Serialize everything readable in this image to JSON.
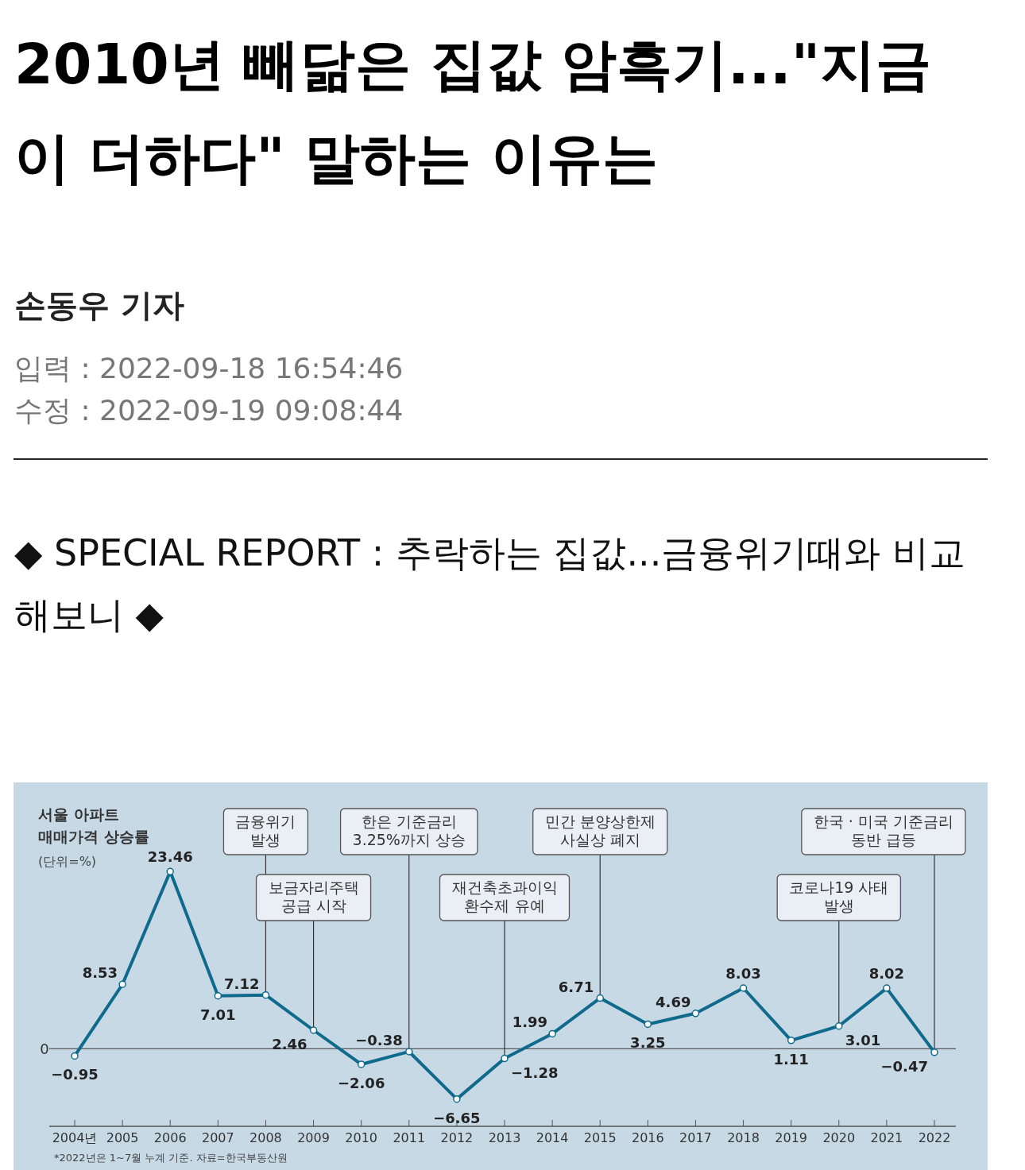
{
  "chart_data": {
    "type": "line",
    "title": "2010년 빼닮은 집값 암흑기...\"지금이 더하다\" 말하는 이유는",
    "subtitle": "◆ SPECIAL REPORT : 추락하는 집값...금융위기때와 비교해보니 ◆",
    "ylabel": "서울 아파트 매매가격 상승률",
    "categories": [
      "2004년",
      "2005",
      "2006",
      "2007",
      "2008",
      "2009",
      "2010",
      "2011",
      "2012",
      "2013",
      "2014",
      "2015",
      "2016",
      "2017",
      "2018",
      "2019",
      "2020",
      "2021",
      "2022"
    ],
    "series": [
      {
        "color": "#0f6a8c",
        "values": [
          -0.95,
          8.53,
          23.46,
          7.01,
          7.12,
          2.46,
          -2.06,
          -0.38,
          -6.65,
          -1.28,
          1.99,
          6.71,
          3.25,
          4.69,
          8.03,
          1.11,
          3.01,
          8.02,
          -0.47
        ]
      }
    ],
    "ref_lines": [
      {
        "axis": "y",
        "value": 0,
        "label": "0"
      }
    ],
    "data_labels": true,
    "marker": "circle",
    "annotations": [
      "손동우 기자",
      "입력 : 2022-09-18 16:54:46",
      "수정 : 2022-09-19 09:08:44",
      "(단위=%)",
      "*2022년은 1~7월 누계 기준. 자료=한국부동산원",
      "한은 기준금리\n3.25%까지 상승",
      "한국 · 미국 기준금리\n동반 급등",
      {
        "text": "금융위기\n발생",
        "x": "2008",
        "y": 7.12
      },
      {
        "text": "보금자리주택\n공급 시작",
        "x": "2009",
        "y": 2.46
      },
      {
        "text": "재건축초과이익\n환수제 유예",
        "x": "2013",
        "y": -1.28
      },
      {
        "text": "민간 분양상한제\n사실상 폐지",
        "x": "2015",
        "y": 6.71
      },
      {
        "text": "코로나19 사태\n발생",
        "x": "2020",
        "y": 3.01
      }
    ]
  }
}
